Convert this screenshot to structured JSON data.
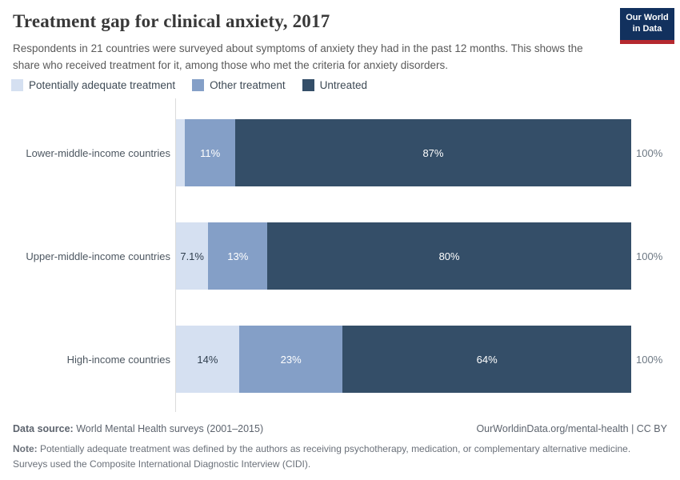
{
  "header": {
    "title": "Treatment gap for clinical anxiety, 2017",
    "subtitle": "Respondents in 21 countries were surveyed about symptoms of anxiety they had in the past 12 months. This shows the share who received treatment for it, among those who met the criteria for anxiety disorders."
  },
  "logo": {
    "line1": "Our World",
    "line2": "in Data"
  },
  "colors": {
    "light": "#d5e0f1",
    "medium": "#849fc7",
    "dark": "#344e68",
    "logo_navy": "#12315e",
    "logo_red": "#b5292f",
    "dark_value_label": "#2f3e4e",
    "light_value_label": "#ffffff"
  },
  "legend": {
    "items": [
      {
        "label": "Potentially adequate treatment",
        "color_key": "light"
      },
      {
        "label": "Other treatment",
        "color_key": "medium"
      },
      {
        "label": "Untreated",
        "color_key": "dark"
      }
    ]
  },
  "chart_data": {
    "type": "bar",
    "orientation": "horizontal-stacked",
    "title": "Treatment gap for clinical anxiety, 2017",
    "xlim": [
      0,
      100
    ],
    "categories": [
      "Lower-middle-income countries",
      "Upper-middle-income countries",
      "High-income countries"
    ],
    "series": [
      {
        "name": "Potentially adequate treatment",
        "color_key": "light",
        "values": [
          2,
          7.1,
          14
        ],
        "labels": [
          "",
          "7.1%",
          "14%"
        ]
      },
      {
        "name": "Other treatment",
        "color_key": "medium",
        "values": [
          11,
          13,
          23
        ],
        "labels": [
          "11%",
          "13%",
          "23%"
        ]
      },
      {
        "name": "Untreated",
        "color_key": "dark",
        "values": [
          87,
          80,
          64
        ],
        "labels": [
          "87%",
          "80%",
          "64%"
        ]
      }
    ],
    "totals": [
      "100%",
      "100%",
      "100%"
    ]
  },
  "footer": {
    "data_source_label": "Data source:",
    "data_source_text": " World Mental Health surveys (2001–2015)",
    "right_text": "OurWorldinData.org/mental-health | CC BY",
    "note_label": "Note:",
    "note_text": " Potentially adequate treatment was defined by the authors as receiving psychotherapy, medication, or complementary alternative medicine. Surveys used the Composite International Diagnostic Interview (CIDI)."
  }
}
